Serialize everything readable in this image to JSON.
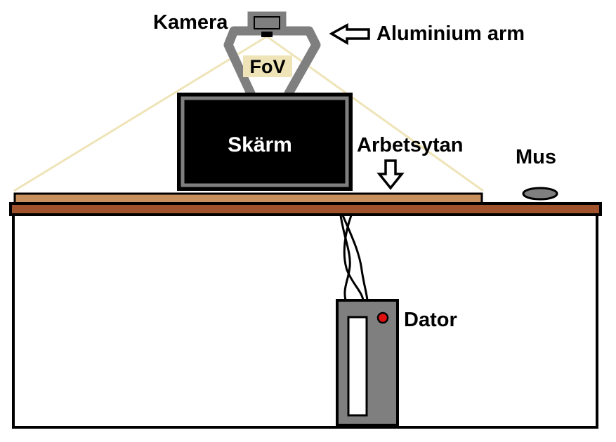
{
  "labels": {
    "kamera": "Kamera",
    "aluminium_arm": "Aluminium arm",
    "fov": "FoV",
    "skarm": "Skärm",
    "arbetsytan": "Arbetsytan",
    "mus": "Mus",
    "dator": "Dator"
  },
  "colors": {
    "background": "#ffffff",
    "outline": "#000000",
    "desk_top": "#a0522d",
    "work_surface": "#c8905c",
    "fov_lines": "#efe4b8",
    "fov_label_bg": "#efe4b8",
    "camera_body": "#7f7f7f",
    "arm": "#7f7f7f",
    "screen_frame": "#7f7f7f",
    "screen": "#000000",
    "screen_text": "#ffffff",
    "computer_case": "#7f7f7f",
    "drive_slot": "#ffffff",
    "power_led": "#e01010",
    "mouse": "#7f7f7f"
  }
}
